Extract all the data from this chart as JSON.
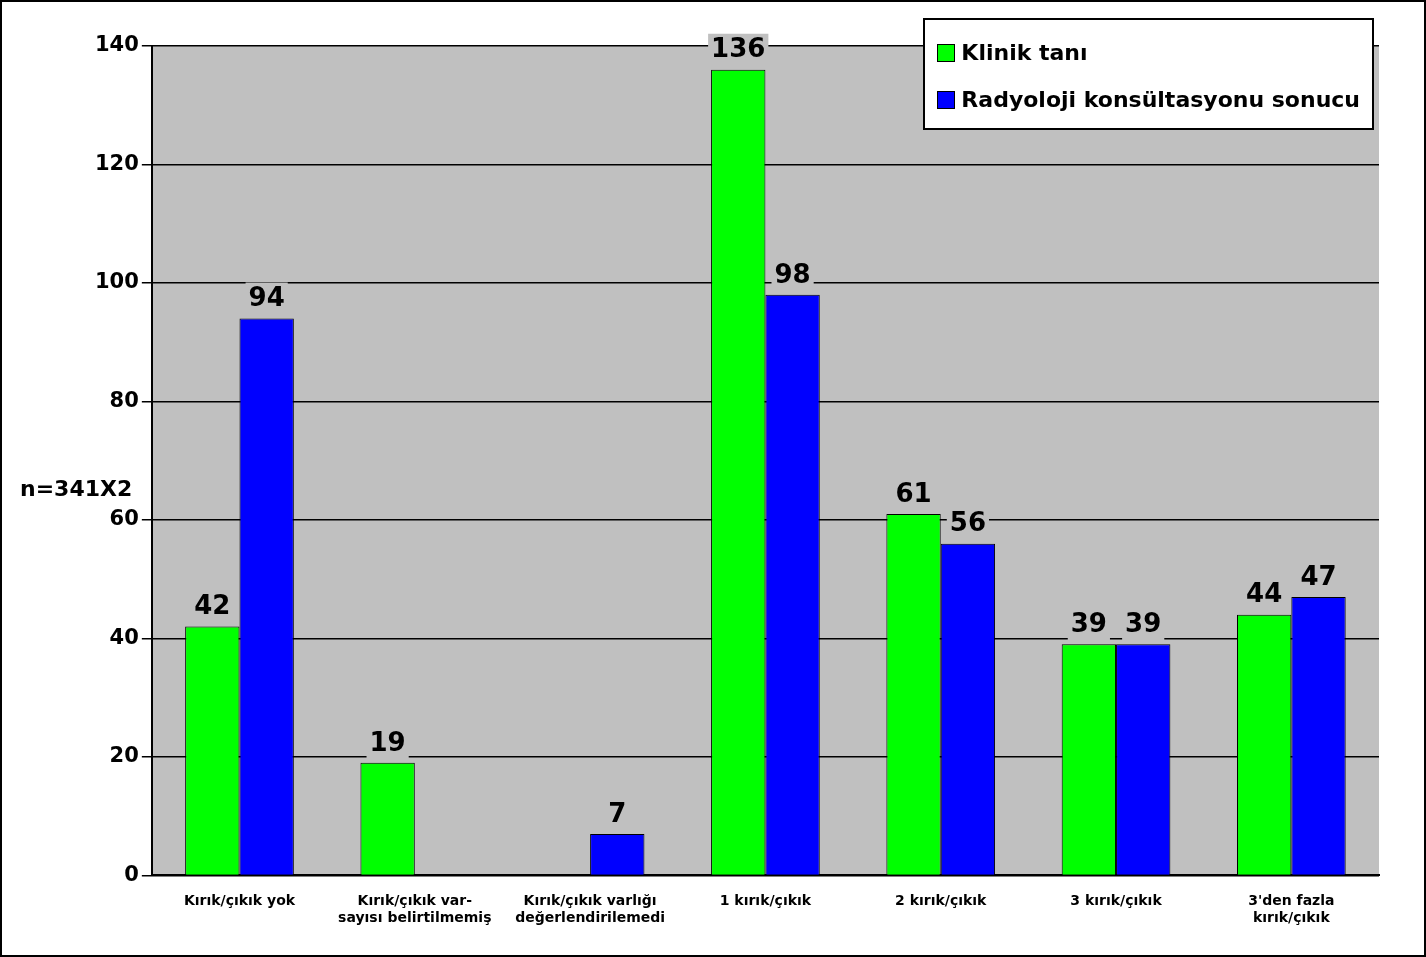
{
  "chart_data": {
    "type": "bar",
    "ylabel": "n=341X2",
    "categories": [
      "Kırık/çıkık yok",
      "Kırık/çıkık var-\nsayısı belirtilmemiş",
      "Kırık/çıkık varlığı\ndeğerlendirilemedi",
      "1 kırık/çıkık",
      "2 kırık/çıkık",
      "3 kırık/çıkık",
      "3'den fazla\nkırık/çıkık"
    ],
    "series": [
      {
        "name": "Klinik tanı",
        "color": "#00ff00",
        "values": [
          42,
          19,
          null,
          136,
          61,
          39,
          44
        ]
      },
      {
        "name": "Radyoloji konsültasyonu sonucu",
        "color": "#0000ff",
        "values": [
          94,
          null,
          7,
          98,
          56,
          39,
          47
        ]
      }
    ],
    "ylim": [
      0,
      140
    ],
    "yticks": [
      0,
      20,
      40,
      60,
      80,
      100,
      120,
      140
    ],
    "grid": "y",
    "legend": "top right",
    "data_labels": true
  }
}
